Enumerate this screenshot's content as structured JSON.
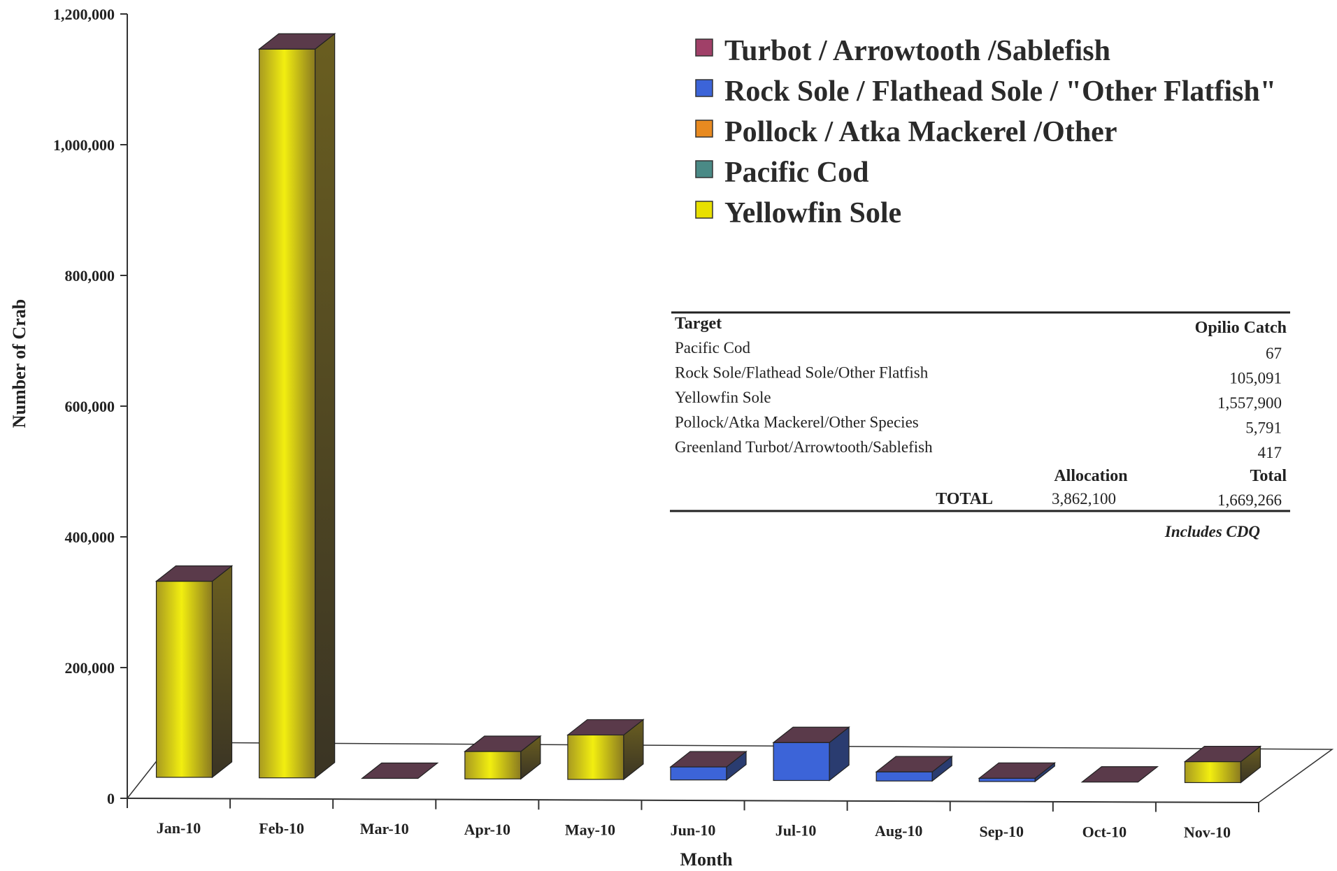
{
  "chart_data": {
    "type": "bar",
    "stacked": true,
    "three_d": true,
    "xlabel": "Month",
    "ylabel": "Number of Crab",
    "ylim": [
      0,
      1200000
    ],
    "yticks": [
      "0",
      "200,000",
      "400,000",
      "600,000",
      "800,000",
      "1,000,000",
      "1,200,000"
    ],
    "categories": [
      "Jan-10",
      "Feb-10",
      "Mar-10",
      "Apr-10",
      "May-10",
      "Jun-10",
      "Jul-10",
      "Aug-10",
      "Sep-10",
      "Oct-10",
      "Nov-10"
    ],
    "legend_position": "top-right",
    "series": [
      {
        "name": "Yellowfin Sole",
        "color": "#e8e000",
        "values": [
          300000,
          1115000,
          0,
          42000,
          68000,
          0,
          0,
          0,
          0,
          0,
          32000
        ]
      },
      {
        "name": "Pacific Cod",
        "color": "#4a8a86",
        "values": [
          0,
          0,
          0,
          0,
          0,
          0,
          0,
          0,
          0,
          0,
          0
        ]
      },
      {
        "name": "Pollock / Atka Mackerel /Other",
        "color": "#e88a20",
        "values": [
          0,
          0,
          0,
          0,
          0,
          0,
          0,
          0,
          0,
          0,
          0
        ]
      },
      {
        "name": "Rock Sole / Flathead Sole / \"Other Flatfish\"",
        "color": "#3c64d8",
        "values": [
          0,
          0,
          0,
          0,
          0,
          20000,
          58000,
          14000,
          5000,
          0,
          0
        ]
      },
      {
        "name": "Turbot / Arrowtooth /Sablefish",
        "color": "#a04068",
        "values": [
          0,
          0,
          0,
          0,
          0,
          0,
          0,
          0,
          0,
          0,
          0
        ]
      }
    ],
    "legend_order": [
      4,
      3,
      2,
      1,
      0
    ]
  },
  "table": {
    "header_target": "Target",
    "header_catch": "Opilio Catch",
    "rows": [
      {
        "target": "Pacific Cod",
        "catch": "67"
      },
      {
        "target": "Rock Sole/Flathead Sole/Other Flatfish",
        "catch": "105,091"
      },
      {
        "target": "Yellowfin Sole",
        "catch": "1,557,900"
      },
      {
        "target": "Pollock/Atka Mackerel/Other Species",
        "catch": "5,791"
      },
      {
        "target": "Greenland Turbot/Arrowtooth/Sablefish",
        "catch": "417"
      }
    ],
    "allocation_label": "Allocation",
    "total_col_label": "Total",
    "total_label": "TOTAL",
    "allocation_value": "3,862,100",
    "total_value": "1,669,266",
    "note": "Includes CDQ"
  }
}
